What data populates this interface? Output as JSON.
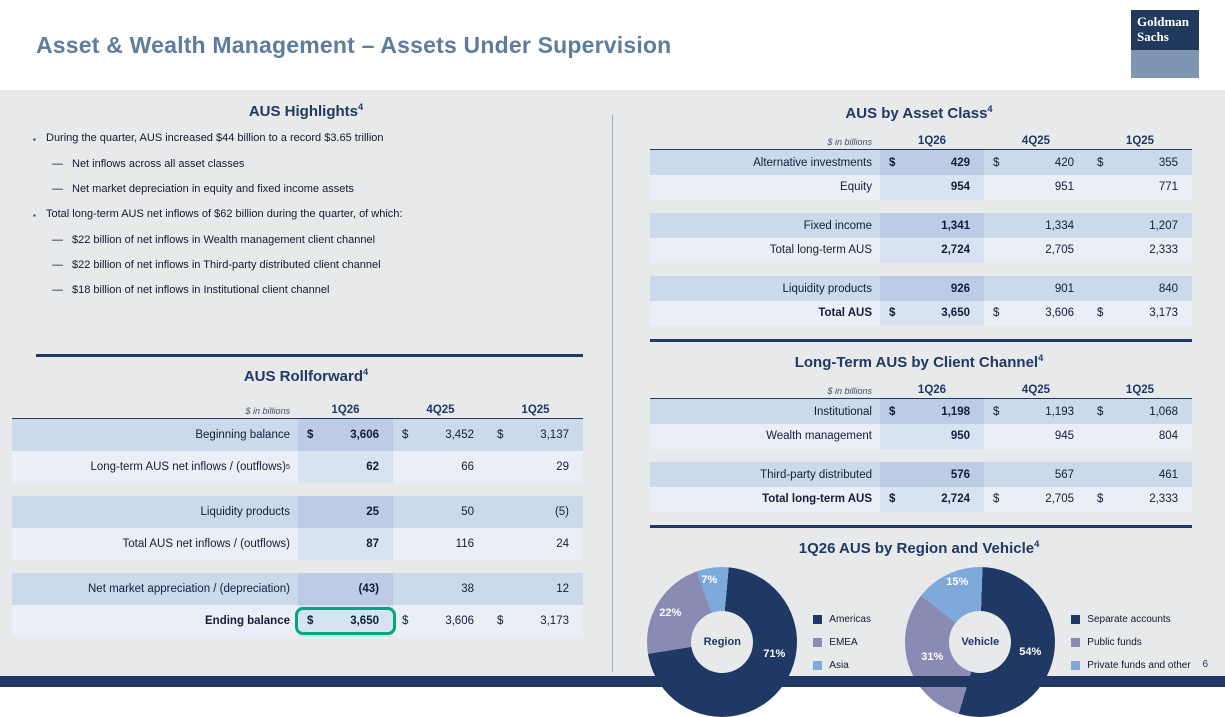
{
  "slide": {
    "title": "Asset & Wealth Management – Assets Under Supervision",
    "page_number": "6",
    "logo_line1": "Goldman",
    "logo_line2": "Sachs",
    "colors": {
      "navy": "#1f3864",
      "title_blue": "#5e7d9e",
      "highlight_green": "#00a87c",
      "row_shade": "#ccd9eb",
      "row_light": "#eaeef6"
    }
  },
  "highlights": {
    "title": "AUS Highlights",
    "sup": "4",
    "items": [
      {
        "text": "During the quarter, AUS increased $44 billion to a record $3.65 trillion"
      },
      {
        "text": "Net inflows across all asset classes"
      },
      {
        "text": "Net market depreciation in equity and fixed income assets"
      },
      {
        "text": "Total long-term AUS net inflows of $62 billion during the quarter, of which:"
      },
      {
        "text": "$22 billion of net inflows in Wealth management client channel"
      },
      {
        "text": "$22 billion of net inflows in Third-party distributed client channel"
      },
      {
        "text": "$18 billion of net inflows in Institutional client channel"
      }
    ]
  },
  "rollforward": {
    "title": "AUS Rollforward",
    "sup": "4",
    "unit": "$ in billions",
    "columns": [
      "1Q26",
      "4Q25",
      "1Q25"
    ],
    "rows": [
      {
        "label": "Beginning balance",
        "sup": "",
        "cur": "$",
        "values": [
          "3,606",
          "3,452",
          "3,137"
        ]
      },
      {
        "label": "Long-term AUS net inflows / (outflows)",
        "sup": "5",
        "cur": "",
        "values": [
          "62",
          "66",
          "29"
        ]
      },
      {
        "label": "Liquidity products",
        "sup": "",
        "cur": "",
        "values": [
          "25",
          "50",
          "(5)"
        ]
      },
      {
        "label": "Total AUS net inflows / (outflows)",
        "sup": "",
        "cur": "",
        "values": [
          "87",
          "116",
          "24"
        ]
      },
      {
        "label": "Net market appreciation / (depreciation)",
        "sup": "",
        "cur": "",
        "values": [
          "(43)",
          "38",
          "12"
        ]
      },
      {
        "label": "Ending balance",
        "sup": "",
        "cur": "$",
        "values": [
          "3,650",
          "3,606",
          "3,173"
        ]
      }
    ]
  },
  "asset_class": {
    "title": "AUS by Asset Class",
    "sup": "4",
    "unit": "$ in billions",
    "columns": [
      "1Q26",
      "4Q25",
      "1Q25"
    ],
    "rows": [
      {
        "label": "Alternative investments",
        "cur": "$",
        "values": [
          "429",
          "420",
          "355"
        ]
      },
      {
        "label": "Equity",
        "cur": "",
        "values": [
          "954",
          "951",
          "771"
        ]
      },
      {
        "label": "Fixed income",
        "cur": "",
        "values": [
          "1,341",
          "1,334",
          "1,207"
        ]
      },
      {
        "label": "Total long-term AUS",
        "cur": "",
        "values": [
          "2,724",
          "2,705",
          "2,333"
        ]
      },
      {
        "label": "Liquidity products",
        "cur": "",
        "values": [
          "926",
          "901",
          "840"
        ]
      },
      {
        "label": "Total AUS",
        "cur": "$",
        "values": [
          "3,650",
          "3,606",
          "3,173"
        ]
      }
    ]
  },
  "client_channel": {
    "title": "Long-Term AUS by Client Channel",
    "sup": "4",
    "unit": "$ in billions",
    "columns": [
      "1Q26",
      "4Q25",
      "1Q25"
    ],
    "rows": [
      {
        "label": "Institutional",
        "cur": "$",
        "values": [
          "1,198",
          "1,193",
          "1,068"
        ]
      },
      {
        "label": "Wealth management",
        "cur": "",
        "values": [
          "950",
          "945",
          "804"
        ]
      },
      {
        "label": "Third-party distributed",
        "cur": "",
        "values": [
          "576",
          "567",
          "461"
        ]
      },
      {
        "label": "Total long-term AUS",
        "cur": "$",
        "values": [
          "2,724",
          "2,705",
          "2,333"
        ]
      }
    ]
  },
  "region_vehicle": {
    "title": "1Q26 AUS by Region and Vehicle",
    "sup": "4",
    "charts": [
      {
        "type": "pie",
        "center": "Region",
        "start_angle": -20,
        "slices": [
          {
            "label": "Asia",
            "pct": 7,
            "pct_label": "7%",
            "color": "#7fa9da"
          },
          {
            "label": "Americas",
            "pct": 71,
            "pct_label": "71%",
            "color": "#203864"
          },
          {
            "label": "EMEA",
            "pct": 22,
            "pct_label": "22%",
            "color": "#8a8bb4"
          }
        ]
      },
      {
        "type": "pie",
        "center": "Vehicle",
        "start_angle": -52,
        "slices": [
          {
            "label": "Private funds and other",
            "pct": 15,
            "pct_label": "15%",
            "color": "#7fa9da"
          },
          {
            "label": "Separate accounts",
            "pct": 54,
            "pct_label": "54%",
            "color": "#203864"
          },
          {
            "label": "Public funds",
            "pct": 31,
            "pct_label": "31%",
            "color": "#8a8bb4"
          }
        ]
      }
    ]
  }
}
